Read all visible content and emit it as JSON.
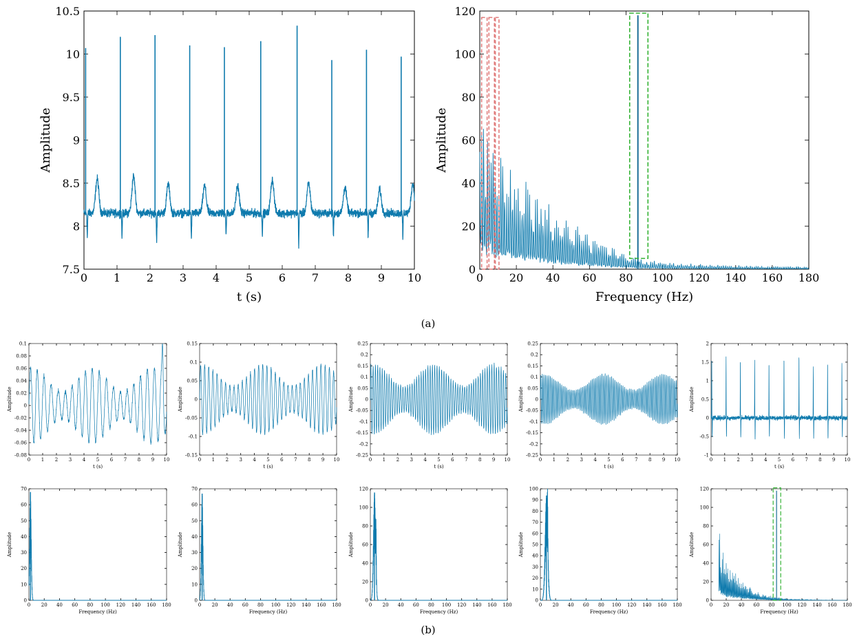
{
  "captions": {
    "a": "(a)",
    "b": "(b)"
  },
  "style": {
    "signal_color": "#0e7aad",
    "red_box_color": "#e07b7b",
    "green_box_color": "#33b233"
  },
  "chart_data": [
    {
      "id": "a-time",
      "type": "line",
      "xlabel": "t (s)",
      "ylabel": "Amplitude",
      "xlim": [
        0,
        10
      ],
      "ylim": [
        7.5,
        10.5
      ],
      "xticks": [
        0,
        1,
        2,
        3,
        4,
        5,
        6,
        7,
        8,
        9,
        10
      ],
      "yticks": [
        7.5,
        8,
        8.5,
        9,
        9.5,
        10,
        10.5
      ],
      "baseline": 8.15,
      "noise": 0.06,
      "peaks": [
        {
          "t": 0.05,
          "value": 10.07
        },
        {
          "t": 1.1,
          "value": 10.2
        },
        {
          "t": 2.15,
          "value": 10.22
        },
        {
          "t": 3.2,
          "value": 10.1
        },
        {
          "t": 4.25,
          "value": 10.08
        },
        {
          "t": 5.35,
          "value": 10.15
        },
        {
          "t": 6.45,
          "value": 10.33
        },
        {
          "t": 7.5,
          "value": 9.93
        },
        {
          "t": 8.55,
          "value": 10.05
        },
        {
          "t": 9.6,
          "value": 9.97
        }
      ],
      "t_waves": [
        {
          "t": 0.4,
          "value": 8.55
        },
        {
          "t": 1.5,
          "value": 8.58
        },
        {
          "t": 2.55,
          "value": 8.49
        },
        {
          "t": 3.65,
          "value": 8.47
        },
        {
          "t": 4.65,
          "value": 8.47
        },
        {
          "t": 5.7,
          "value": 8.54
        },
        {
          "t": 6.8,
          "value": 8.5
        },
        {
          "t": 7.9,
          "value": 8.45
        },
        {
          "t": 8.95,
          "value": 8.42
        },
        {
          "t": 9.95,
          "value": 8.49
        }
      ],
      "troughs": [
        {
          "t": 0.1,
          "value": 7.87
        },
        {
          "t": 1.15,
          "value": 7.87
        },
        {
          "t": 2.2,
          "value": 7.8
        },
        {
          "t": 3.25,
          "value": 7.85
        },
        {
          "t": 4.3,
          "value": 7.88
        },
        {
          "t": 5.4,
          "value": 7.88
        },
        {
          "t": 6.5,
          "value": 7.79
        },
        {
          "t": 7.55,
          "value": 7.88
        },
        {
          "t": 8.6,
          "value": 7.88
        },
        {
          "t": 9.65,
          "value": 7.86
        }
      ]
    },
    {
      "id": "a-freq",
      "type": "line",
      "xlabel": "Frequency (Hz)",
      "ylabel": "Amplitude",
      "xlim": [
        0,
        180
      ],
      "ylim": [
        0,
        120
      ],
      "xticks": [
        0,
        20,
        40,
        60,
        80,
        100,
        120,
        140,
        160,
        180
      ],
      "yticks": [
        0,
        20,
        40,
        60,
        80,
        100,
        120
      ],
      "envelope": [
        [
          0,
          70
        ],
        [
          5,
          70
        ],
        [
          10,
          55
        ],
        [
          15,
          45
        ],
        [
          20,
          40
        ],
        [
          30,
          35
        ],
        [
          40,
          25
        ],
        [
          50,
          20
        ],
        [
          60,
          14
        ],
        [
          70,
          10
        ],
        [
          80,
          7
        ],
        [
          90,
          4
        ],
        [
          100,
          3
        ],
        [
          120,
          2
        ],
        [
          140,
          1.5
        ],
        [
          160,
          1.2
        ],
        [
          180,
          1
        ]
      ],
      "spike": {
        "x": 86.5,
        "value": 118
      },
      "red_boxes": [
        {
          "x0": 1,
          "x1": 4,
          "y1": 117
        },
        {
          "x0": 5,
          "x1": 8,
          "y1": 117
        },
        {
          "x0": 8.5,
          "x1": 10.5,
          "y1": 117
        }
      ],
      "green_box": {
        "x0": 82,
        "x1": 92,
        "y0": 5,
        "y1": 119
      }
    },
    {
      "id": "b-imf1",
      "type": "line",
      "xlabel": "t (s)",
      "ylabel": "Amplitude",
      "xlim": [
        0,
        10
      ],
      "ylim": [
        -0.08,
        0.1
      ],
      "xticks": [
        0,
        1,
        2,
        3,
        4,
        5,
        6,
        7,
        8,
        9,
        10
      ],
      "yticks": [
        -0.08,
        -0.06,
        -0.04,
        -0.02,
        0,
        0.02,
        0.04,
        0.06,
        0.08,
        0.1
      ],
      "osc_freq": 2.0,
      "amp": 0.055,
      "spike_t": 9.7,
      "spike_value": 0.1
    },
    {
      "id": "b-imf2",
      "type": "line",
      "xlabel": "t (s)",
      "ylabel": "Amplitude",
      "xlim": [
        0,
        10
      ],
      "ylim": [
        -0.15,
        0.15
      ],
      "xticks": [
        0,
        1,
        2,
        3,
        4,
        5,
        6,
        7,
        8,
        9,
        10
      ],
      "yticks": [
        -0.15,
        -0.1,
        -0.05,
        0,
        0.05,
        0.1,
        0.15
      ],
      "osc_freq": 3.3,
      "amp": 0.085
    },
    {
      "id": "b-imf3",
      "type": "line",
      "xlabel": "t (s)",
      "ylabel": "Amplitude",
      "xlim": [
        0,
        10
      ],
      "ylim": [
        -0.25,
        0.25
      ],
      "xticks": [
        0,
        1,
        2,
        3,
        4,
        5,
        6,
        7,
        8,
        9,
        10
      ],
      "yticks": [
        -0.25,
        -0.2,
        -0.15,
        -0.1,
        -0.05,
        0,
        0.05,
        0.1,
        0.15,
        0.2,
        0.25
      ],
      "osc_freq": 6.0,
      "amp": 0.14
    },
    {
      "id": "b-imf4",
      "type": "line",
      "xlabel": "t (s)",
      "ylabel": "Amplitude",
      "xlim": [
        0,
        10
      ],
      "ylim": [
        -0.25,
        0.25
      ],
      "xticks": [
        0,
        1,
        2,
        3,
        4,
        5,
        6,
        7,
        8,
        9,
        10
      ],
      "yticks": [
        -0.25,
        -0.2,
        -0.15,
        -0.1,
        -0.05,
        0,
        0.05,
        0.1,
        0.15,
        0.2,
        0.25
      ],
      "osc_freq": 8.5,
      "amp": 0.1
    },
    {
      "id": "b-imf5",
      "type": "line",
      "xlabel": "t (s)",
      "ylabel": "Amplitude",
      "xlim": [
        0,
        10
      ],
      "ylim": [
        -1,
        2
      ],
      "xticks": [
        0,
        1,
        2,
        3,
        4,
        5,
        6,
        7,
        8,
        9,
        10
      ],
      "yticks": [
        -1,
        -0.5,
        0,
        0.5,
        1,
        1.5,
        2
      ],
      "peaks": [
        0.05,
        1.1,
        2.15,
        3.2,
        4.25,
        5.35,
        6.45,
        7.5,
        8.55,
        9.6
      ],
      "peak_values": [
        1.65,
        1.68,
        1.7,
        1.58,
        1.55,
        1.65,
        1.78,
        1.45,
        1.55,
        1.48
      ]
    },
    {
      "id": "b-spec1",
      "type": "line",
      "xlabel": "Frequency (Hz)",
      "ylabel": "Amplitude",
      "xlim": [
        0,
        180
      ],
      "ylim": [
        0,
        70
      ],
      "xticks": [
        0,
        20,
        40,
        60,
        80,
        100,
        120,
        140,
        160,
        180
      ],
      "yticks": [
        0,
        10,
        20,
        30,
        40,
        50,
        60,
        70
      ],
      "peak_x": 2.0,
      "peak_value": 68,
      "width": 1.5
    },
    {
      "id": "b-spec2",
      "type": "line",
      "xlabel": "Frequency (Hz)",
      "ylabel": "Amplitude",
      "xlim": [
        0,
        180
      ],
      "ylim": [
        0,
        70
      ],
      "xticks": [
        0,
        20,
        40,
        60,
        80,
        100,
        120,
        140,
        160,
        180
      ],
      "yticks": [
        0,
        10,
        20,
        30,
        40,
        50,
        60,
        70
      ],
      "peak_x": 3.3,
      "peak_value": 67,
      "width": 1.5
    },
    {
      "id": "b-spec3",
      "type": "line",
      "xlabel": "Frequency (Hz)",
      "ylabel": "Amplitude",
      "xlim": [
        0,
        180
      ],
      "ylim": [
        0,
        120
      ],
      "xticks": [
        0,
        20,
        40,
        60,
        80,
        100,
        120,
        140,
        160,
        180
      ],
      "yticks": [
        0,
        20,
        40,
        60,
        80,
        100,
        120
      ],
      "peak_x": 5.5,
      "peak_value": 116,
      "width": 2.0,
      "side_x": 7.5,
      "side_value": 48
    },
    {
      "id": "b-spec4",
      "type": "line",
      "xlabel": "Frequency (Hz)",
      "ylabel": "Amplitude",
      "xlim": [
        0,
        180
      ],
      "ylim": [
        0,
        100
      ],
      "xticks": [
        0,
        20,
        40,
        60,
        80,
        100,
        120,
        140,
        160,
        180
      ],
      "yticks": [
        0,
        10,
        20,
        30,
        40,
        50,
        60,
        70,
        80,
        90,
        100
      ],
      "peak_x": 8.0,
      "peak_value": 94,
      "width": 2.5,
      "side_x": 9.5,
      "side_value": 35
    },
    {
      "id": "b-spec5",
      "type": "line",
      "xlabel": "Frequency (Hz)",
      "ylabel": "Amplitude",
      "xlim": [
        0,
        180
      ],
      "ylim": [
        0,
        120
      ],
      "xticks": [
        0,
        20,
        40,
        60,
        80,
        100,
        120,
        140,
        160,
        180
      ],
      "yticks": [
        0,
        20,
        40,
        60,
        80,
        100,
        120
      ],
      "envelope": [
        [
          10,
          76
        ],
        [
          15,
          45
        ],
        [
          20,
          38
        ],
        [
          30,
          30
        ],
        [
          40,
          20
        ],
        [
          50,
          14
        ],
        [
          60,
          9
        ],
        [
          70,
          6
        ],
        [
          80,
          4
        ],
        [
          90,
          2.5
        ],
        [
          100,
          1.5
        ],
        [
          120,
          1
        ],
        [
          140,
          0.5
        ],
        [
          180,
          0
        ]
      ],
      "spike": {
        "x": 86.5,
        "value": 118
      },
      "green_box": {
        "x0": 82,
        "x1": 92,
        "y0": 0,
        "y1": 121
      }
    }
  ]
}
